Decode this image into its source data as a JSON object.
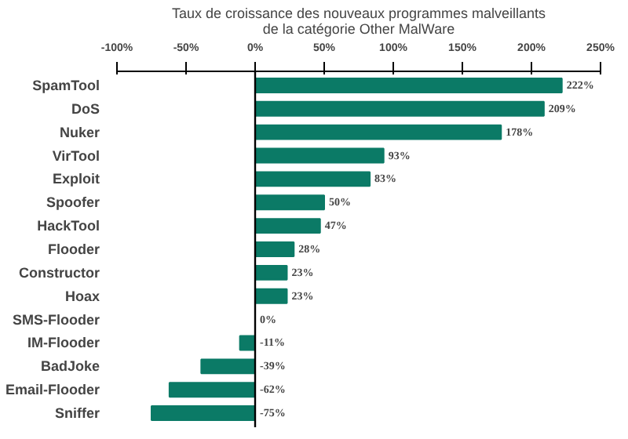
{
  "chart_data": {
    "type": "bar",
    "orientation": "horizontal",
    "title": "Taux de croissance des nouveaux programmes malveillants\nde la catégorie Other MalWare",
    "categories": [
      "SpamTool",
      "DoS",
      "Nuker",
      "VirTool",
      "Exploit",
      "Spoofer",
      "HackTool",
      "Flooder",
      "Constructor",
      "Hoax",
      "SMS-Flooder",
      "IM-Flooder",
      "BadJoke",
      "Email-Flooder",
      "Sniffer"
    ],
    "values": [
      222,
      209,
      178,
      93,
      83,
      50,
      47,
      28,
      23,
      23,
      0,
      -11,
      -39,
      -62,
      -75
    ],
    "value_labels": [
      "222%",
      "209%",
      "178%",
      "93%",
      "83%",
      "50%",
      "47%",
      "28%",
      "23%",
      "23%",
      "0%",
      "-11%",
      "-39%",
      "-62%",
      "-75%"
    ],
    "color": "#0b7a66",
    "xlim": [
      -100,
      250
    ],
    "xticks": [
      {
        "value": -100,
        "label": "-100%"
      },
      {
        "value": -50,
        "label": "-50%"
      },
      {
        "value": 0,
        "label": "0%"
      },
      {
        "value": 50,
        "label": "50%"
      },
      {
        "value": 100,
        "label": "100%"
      },
      {
        "value": 150,
        "label": "150%"
      },
      {
        "value": 200,
        "label": "200%"
      },
      {
        "value": 250,
        "label": "250%"
      }
    ],
    "grid": false,
    "ref_lines": [
      {
        "axis": "x",
        "value": 0,
        "color": "#000000"
      }
    ]
  }
}
